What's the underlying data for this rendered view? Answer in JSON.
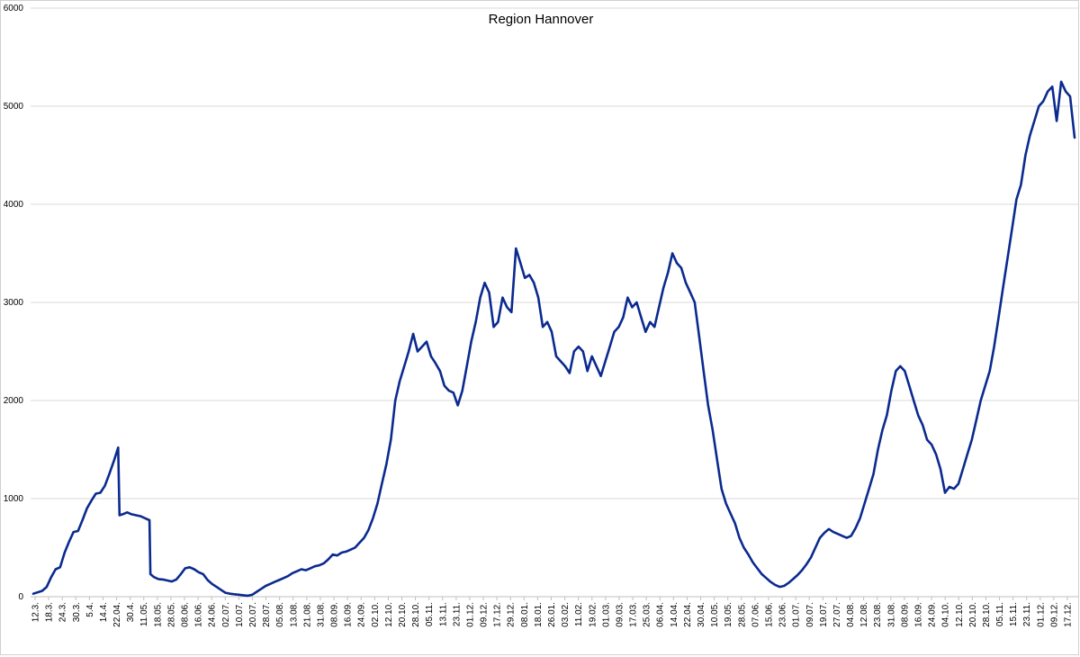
{
  "chart_data": {
    "type": "line",
    "title": "Region Hannover",
    "xlabel": "",
    "ylabel": "",
    "ylim": [
      0,
      6000
    ],
    "yticks": [
      0,
      1000,
      2000,
      3000,
      4000,
      5000,
      6000
    ],
    "grid": true,
    "legend": "none",
    "line_color": "#0b2a8f",
    "x_tick_labels": [
      "12.3.",
      "18.3.",
      "24.3.",
      "30.3.",
      "5.4.",
      "14.4.",
      "22.04.",
      "30.4.",
      "11.05.",
      "18.05.",
      "28.05.",
      "08.06.",
      "16.06.",
      "24.06.",
      "02.07.",
      "10.07.",
      "20.07.",
      "28.07.",
      "05.08.",
      "13.08.",
      "21.08.",
      "31.08.",
      "08.09.",
      "16.09.",
      "24.09.",
      "02.10.",
      "12.10.",
      "20.10.",
      "28.10.",
      "05.11.",
      "13.11.",
      "23.11.",
      "01.12.",
      "09.12.",
      "17.12.",
      "29.12.",
      "08.01.",
      "18.01.",
      "26.01.",
      "03.02.",
      "11.02.",
      "19.02.",
      "01.03.",
      "09.03.",
      "17.03.",
      "25.03.",
      "06.04.",
      "14.04.",
      "22.04.",
      "30.04.",
      "10.05.",
      "19.05.",
      "28.05.",
      "07.06.",
      "15.06.",
      "23.06.",
      "01.07.",
      "09.07.",
      "19.07.",
      "27.07.",
      "04.08.",
      "12.08.",
      "23.08.",
      "31.08.",
      "08.09.",
      "16.09.",
      "24.09.",
      "04.10.",
      "12.10.",
      "20.10.",
      "28.10.",
      "05.11.",
      "15.11.",
      "23.11.",
      "01.12.",
      "09.12.",
      "17.12."
    ],
    "series": [
      {
        "name": "",
        "values": [
          [
            0,
            30
          ],
          [
            2,
            60
          ],
          [
            3,
            100
          ],
          [
            4,
            200
          ],
          [
            5,
            280
          ],
          [
            6,
            300
          ],
          [
            7,
            450
          ],
          [
            8,
            560
          ],
          [
            9,
            660
          ],
          [
            10,
            670
          ],
          [
            11,
            780
          ],
          [
            12,
            900
          ],
          [
            13,
            980
          ],
          [
            14,
            1050
          ],
          [
            15,
            1060
          ],
          [
            16,
            1130
          ],
          [
            17,
            1250
          ],
          [
            18,
            1380
          ],
          [
            19,
            1520
          ],
          [
            19.3,
            830
          ],
          [
            20,
            840
          ],
          [
            21,
            860
          ],
          [
            22,
            840
          ],
          [
            23,
            830
          ],
          [
            24,
            820
          ],
          [
            25,
            800
          ],
          [
            26,
            780
          ],
          [
            26.2,
            230
          ],
          [
            27,
            200
          ],
          [
            28,
            180
          ],
          [
            29,
            175
          ],
          [
            30,
            165
          ],
          [
            31,
            155
          ],
          [
            32,
            175
          ],
          [
            33,
            230
          ],
          [
            34,
            290
          ],
          [
            35,
            300
          ],
          [
            36,
            280
          ],
          [
            37,
            250
          ],
          [
            38,
            230
          ],
          [
            39,
            170
          ],
          [
            40,
            130
          ],
          [
            41,
            100
          ],
          [
            42,
            70
          ],
          [
            43,
            40
          ],
          [
            44,
            30
          ],
          [
            45,
            25
          ],
          [
            46,
            20
          ],
          [
            47,
            15
          ],
          [
            48,
            10
          ],
          [
            49,
            20
          ],
          [
            50,
            50
          ],
          [
            51,
            80
          ],
          [
            52,
            110
          ],
          [
            53,
            130
          ],
          [
            54,
            150
          ],
          [
            55,
            170
          ],
          [
            56,
            190
          ],
          [
            57,
            210
          ],
          [
            58,
            240
          ],
          [
            59,
            260
          ],
          [
            60,
            280
          ],
          [
            61,
            270
          ],
          [
            62,
            290
          ],
          [
            63,
            310
          ],
          [
            64,
            320
          ],
          [
            65,
            340
          ],
          [
            66,
            380
          ],
          [
            67,
            430
          ],
          [
            68,
            420
          ],
          [
            69,
            450
          ],
          [
            70,
            460
          ],
          [
            71,
            480
          ],
          [
            72,
            500
          ],
          [
            73,
            550
          ],
          [
            74,
            600
          ],
          [
            75,
            680
          ],
          [
            76,
            800
          ],
          [
            77,
            950
          ],
          [
            78,
            1150
          ],
          [
            79,
            1350
          ],
          [
            80,
            1600
          ],
          [
            81,
            2000
          ],
          [
            82,
            2200
          ],
          [
            83,
            2350
          ],
          [
            84,
            2500
          ],
          [
            85,
            2680
          ],
          [
            86,
            2500
          ],
          [
            87,
            2550
          ],
          [
            88,
            2600
          ],
          [
            89,
            2450
          ],
          [
            90,
            2380
          ],
          [
            91,
            2300
          ],
          [
            92,
            2150
          ],
          [
            93,
            2100
          ],
          [
            94,
            2080
          ],
          [
            95,
            1950
          ],
          [
            96,
            2100
          ],
          [
            97,
            2350
          ],
          [
            98,
            2600
          ],
          [
            99,
            2800
          ],
          [
            100,
            3050
          ],
          [
            101,
            3200
          ],
          [
            102,
            3100
          ],
          [
            103,
            2750
          ],
          [
            104,
            2800
          ],
          [
            105,
            3050
          ],
          [
            106,
            2950
          ],
          [
            107,
            2900
          ],
          [
            108,
            3550
          ],
          [
            109,
            3400
          ],
          [
            110,
            3250
          ],
          [
            111,
            3280
          ],
          [
            112,
            3200
          ],
          [
            113,
            3050
          ],
          [
            114,
            2750
          ],
          [
            115,
            2800
          ],
          [
            116,
            2700
          ],
          [
            117,
            2450
          ],
          [
            118,
            2400
          ],
          [
            119,
            2350
          ],
          [
            120,
            2280
          ],
          [
            121,
            2500
          ],
          [
            122,
            2550
          ],
          [
            123,
            2500
          ],
          [
            124,
            2300
          ],
          [
            125,
            2450
          ],
          [
            126,
            2350
          ],
          [
            127,
            2250
          ],
          [
            128,
            2400
          ],
          [
            129,
            2550
          ],
          [
            130,
            2700
          ],
          [
            131,
            2750
          ],
          [
            132,
            2850
          ],
          [
            133,
            3050
          ],
          [
            134,
            2950
          ],
          [
            135,
            3000
          ],
          [
            136,
            2850
          ],
          [
            137,
            2700
          ],
          [
            138,
            2800
          ],
          [
            139,
            2750
          ],
          [
            140,
            2950
          ],
          [
            141,
            3150
          ],
          [
            142,
            3300
          ],
          [
            143,
            3500
          ],
          [
            144,
            3400
          ],
          [
            145,
            3350
          ],
          [
            146,
            3200
          ],
          [
            147,
            3100
          ],
          [
            148,
            3000
          ],
          [
            149,
            2650
          ],
          [
            150,
            2300
          ],
          [
            151,
            1950
          ],
          [
            152,
            1700
          ],
          [
            153,
            1400
          ],
          [
            154,
            1100
          ],
          [
            155,
            950
          ],
          [
            156,
            850
          ],
          [
            157,
            750
          ],
          [
            158,
            600
          ],
          [
            159,
            500
          ],
          [
            160,
            430
          ],
          [
            161,
            350
          ],
          [
            162,
            290
          ],
          [
            163,
            230
          ],
          [
            164,
            190
          ],
          [
            165,
            150
          ],
          [
            166,
            120
          ],
          [
            167,
            100
          ],
          [
            168,
            110
          ],
          [
            169,
            140
          ],
          [
            170,
            180
          ],
          [
            171,
            220
          ],
          [
            172,
            270
          ],
          [
            173,
            330
          ],
          [
            174,
            400
          ],
          [
            175,
            500
          ],
          [
            176,
            600
          ],
          [
            177,
            650
          ],
          [
            178,
            690
          ],
          [
            179,
            660
          ],
          [
            180,
            640
          ],
          [
            181,
            620
          ],
          [
            182,
            600
          ],
          [
            183,
            620
          ],
          [
            184,
            700
          ],
          [
            185,
            800
          ],
          [
            186,
            950
          ],
          [
            187,
            1100
          ],
          [
            188,
            1250
          ],
          [
            189,
            1500
          ],
          [
            190,
            1700
          ],
          [
            191,
            1850
          ],
          [
            192,
            2100
          ],
          [
            193,
            2300
          ],
          [
            194,
            2350
          ],
          [
            195,
            2300
          ],
          [
            196,
            2150
          ],
          [
            197,
            2000
          ],
          [
            198,
            1850
          ],
          [
            199,
            1750
          ],
          [
            200,
            1600
          ],
          [
            201,
            1550
          ],
          [
            202,
            1450
          ],
          [
            203,
            1300
          ],
          [
            204,
            1060
          ],
          [
            205,
            1120
          ],
          [
            206,
            1100
          ],
          [
            207,
            1150
          ],
          [
            208,
            1300
          ],
          [
            209,
            1450
          ],
          [
            210,
            1600
          ],
          [
            211,
            1800
          ],
          [
            212,
            2000
          ],
          [
            213,
            2150
          ],
          [
            214,
            2300
          ],
          [
            215,
            2550
          ],
          [
            216,
            2850
          ],
          [
            217,
            3150
          ],
          [
            218,
            3450
          ],
          [
            219,
            3750
          ],
          [
            220,
            4050
          ],
          [
            221,
            4200
          ],
          [
            222,
            4500
          ],
          [
            223,
            4700
          ],
          [
            224,
            4850
          ],
          [
            225,
            5000
          ],
          [
            226,
            5050
          ],
          [
            227,
            5150
          ],
          [
            228,
            5200
          ],
          [
            229,
            4850
          ],
          [
            230,
            5250
          ],
          [
            231,
            5150
          ],
          [
            232,
            5100
          ],
          [
            233,
            4680
          ]
        ]
      }
    ]
  }
}
